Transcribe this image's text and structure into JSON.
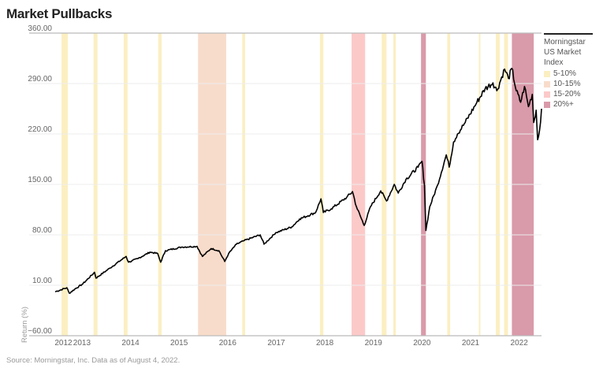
{
  "title": "Market Pullbacks",
  "source": "Source: Morningstar, Inc. Data as of August 4, 2022.",
  "legend": {
    "title": "Morningstar US Market Index",
    "items": [
      {
        "label": "5-10%",
        "color": "#fbefc2"
      },
      {
        "label": "10-15%",
        "color": "#f8dccb"
      },
      {
        "label": "15-20%",
        "color": "#fcc9c9"
      },
      {
        "label": "20%+",
        "color": "#d99aaa"
      }
    ]
  },
  "chart_data": {
    "type": "line",
    "title": "Market Pullbacks",
    "xlabel": "",
    "ylabel": "Return (%)",
    "xlim": [
      2012.45,
      2022.46
    ],
    "ylim": [
      -60,
      360
    ],
    "yticks": [
      360,
      290,
      220,
      150,
      80,
      10,
      -60
    ],
    "ytick_labels": [
      "360.00",
      "290.00",
      "220.00",
      "150.00",
      "80.00",
      "10.00",
      "−60.00"
    ],
    "xticks": [
      {
        "label": "2012",
        "pos": 2012.62
      },
      {
        "label": "2013",
        "pos": 2013.0
      },
      {
        "label": "2014",
        "pos": 2014.0
      },
      {
        "label": "2015",
        "pos": 2015.0
      },
      {
        "label": "2016",
        "pos": 2016.0
      },
      {
        "label": "2017",
        "pos": 2017.0
      },
      {
        "label": "2018",
        "pos": 2018.0
      },
      {
        "label": "2019",
        "pos": 2019.0
      },
      {
        "label": "2020",
        "pos": 2020.0
      },
      {
        "label": "2021",
        "pos": 2021.0
      },
      {
        "label": "2022",
        "pos": 2022.0
      }
    ],
    "grid": true,
    "legend_position": "right",
    "series": [
      {
        "name": "Morningstar US Market Index",
        "color": "#000000",
        "points": [
          [
            2012.45,
            1
          ],
          [
            2012.69,
            6.6
          ],
          [
            2012.74,
            -1
          ],
          [
            2012.85,
            4.5
          ],
          [
            2013.02,
            12
          ],
          [
            2013.26,
            28
          ],
          [
            2013.29,
            20
          ],
          [
            2013.58,
            34
          ],
          [
            2013.91,
            50
          ],
          [
            2013.96,
            42
          ],
          [
            2014.15,
            47
          ],
          [
            2014.4,
            56
          ],
          [
            2014.56,
            54
          ],
          [
            2014.62,
            42
          ],
          [
            2014.72,
            58
          ],
          [
            2015.05,
            63
          ],
          [
            2015.37,
            64
          ],
          [
            2015.48,
            50
          ],
          [
            2015.66,
            61
          ],
          [
            2015.82,
            58
          ],
          [
            2015.94,
            43
          ],
          [
            2016.02,
            54
          ],
          [
            2016.18,
            67
          ],
          [
            2016.34,
            72
          ],
          [
            2016.67,
            80
          ],
          [
            2016.75,
            67
          ],
          [
            2016.99,
            83
          ],
          [
            2017.32,
            91
          ],
          [
            2017.48,
            102
          ],
          [
            2017.81,
            111
          ],
          [
            2017.92,
            130
          ],
          [
            2017.97,
            111
          ],
          [
            2018.13,
            116
          ],
          [
            2018.45,
            132
          ],
          [
            2018.57,
            140
          ],
          [
            2018.65,
            119
          ],
          [
            2018.81,
            93
          ],
          [
            2018.94,
            119
          ],
          [
            2019.15,
            141
          ],
          [
            2019.27,
            127
          ],
          [
            2019.43,
            150
          ],
          [
            2019.51,
            138
          ],
          [
            2019.67,
            157
          ],
          [
            2019.92,
            174
          ],
          [
            2020.0,
            182
          ],
          [
            2020.05,
            149
          ],
          [
            2020.08,
            86
          ],
          [
            2020.16,
            119
          ],
          [
            2020.32,
            149
          ],
          [
            2020.5,
            191
          ],
          [
            2020.56,
            174
          ],
          [
            2020.65,
            209
          ],
          [
            2020.73,
            220
          ],
          [
            2020.89,
            236
          ],
          [
            2021.13,
            264
          ],
          [
            2021.3,
            283
          ],
          [
            2021.46,
            291
          ],
          [
            2021.54,
            280
          ],
          [
            2021.7,
            310
          ],
          [
            2021.78,
            297
          ],
          [
            2021.85,
            311
          ],
          [
            2021.94,
            280
          ],
          [
            2022.03,
            264
          ],
          [
            2022.11,
            286
          ],
          [
            2022.19,
            258
          ],
          [
            2022.27,
            275
          ],
          [
            2022.3,
            236
          ],
          [
            2022.35,
            253
          ],
          [
            2022.38,
            212
          ],
          [
            2022.42,
            225
          ],
          [
            2022.46,
            255
          ]
        ]
      }
    ],
    "bands": [
      {
        "category": "5-10%",
        "start": 2012.58,
        "end": 2012.71
      },
      {
        "category": "5-10%",
        "start": 2013.24,
        "end": 2013.32
      },
      {
        "category": "5-10%",
        "start": 2013.86,
        "end": 2013.94
      },
      {
        "category": "5-10%",
        "start": 2014.57,
        "end": 2014.64
      },
      {
        "category": "10-15%",
        "start": 2015.39,
        "end": 2015.97
      },
      {
        "category": "5-10%",
        "start": 2016.3,
        "end": 2016.36
      },
      {
        "category": "5-10%",
        "start": 2017.9,
        "end": 2017.97
      },
      {
        "category": "15-20%",
        "start": 2018.55,
        "end": 2018.83
      },
      {
        "category": "5-10%",
        "start": 2019.17,
        "end": 2019.27
      },
      {
        "category": "5-10%",
        "start": 2019.41,
        "end": 2019.46
      },
      {
        "category": "20%+",
        "start": 2019.98,
        "end": 2020.08
      },
      {
        "category": "5-10%",
        "start": 2020.52,
        "end": 2020.58
      },
      {
        "category": "5-10%",
        "start": 2021.17,
        "end": 2021.2
      },
      {
        "category": "5-10%",
        "start": 2021.52,
        "end": 2021.6
      },
      {
        "category": "5-10%",
        "start": 2021.69,
        "end": 2021.77
      },
      {
        "category": "20%+",
        "start": 2021.85,
        "end": 2022.3
      }
    ]
  }
}
